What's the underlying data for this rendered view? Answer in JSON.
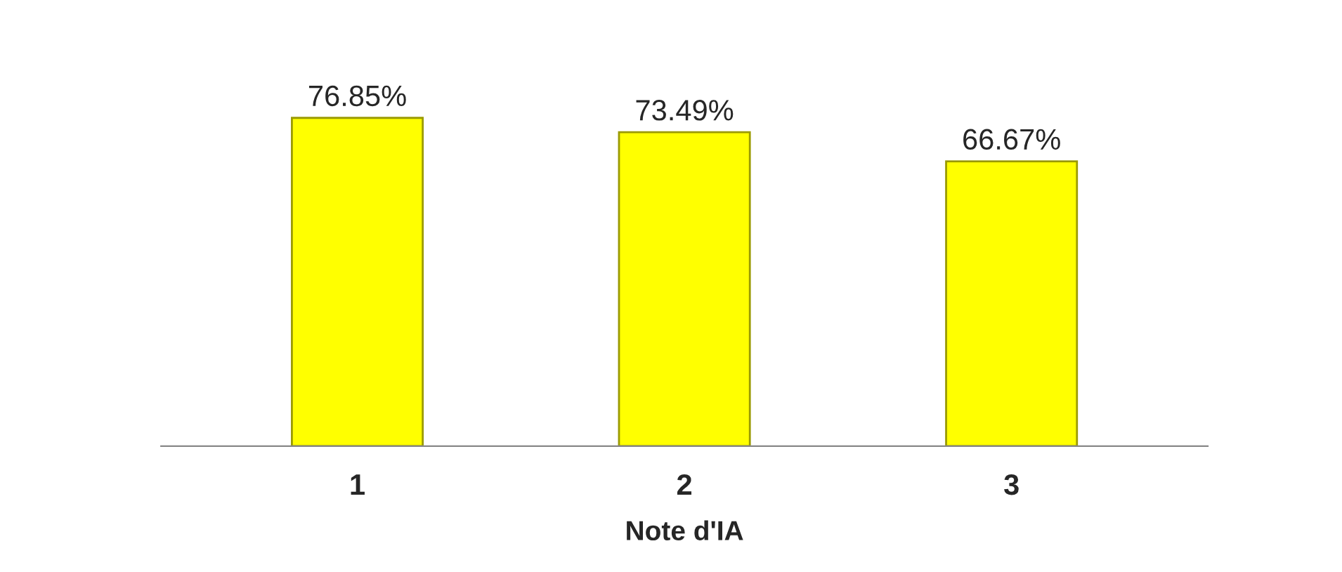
{
  "chart_data": {
    "type": "bar",
    "xlabel": "Note d'IA",
    "categories": [
      "1",
      "2",
      "3"
    ],
    "values": [
      76.85,
      73.49,
      66.67
    ],
    "value_labels": [
      "76.85%",
      "73.49%",
      "66.67%"
    ],
    "color": "#ffff00"
  }
}
